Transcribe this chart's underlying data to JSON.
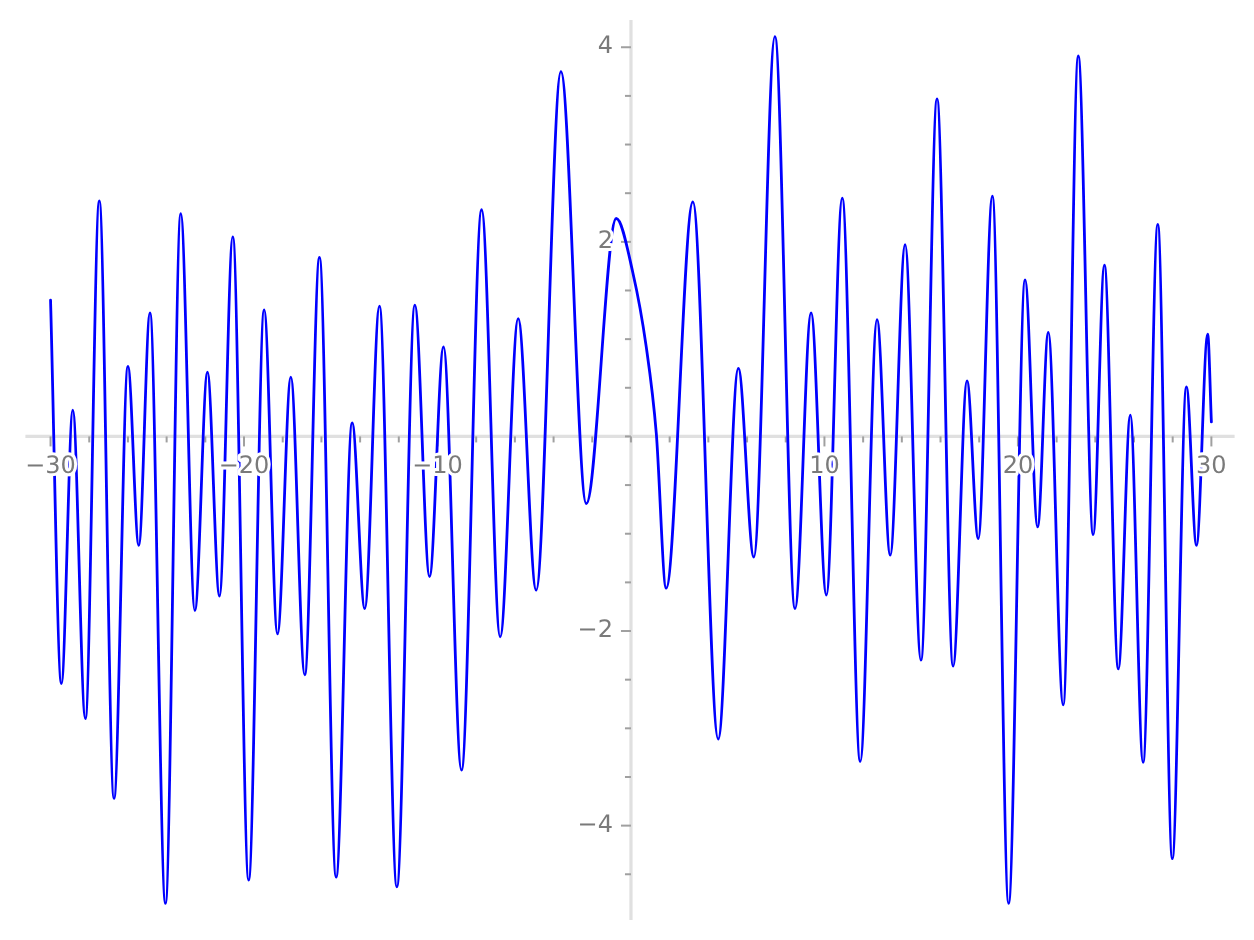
{
  "chart_data": {
    "type": "line",
    "color": "#0000ff",
    "x": [
      -30,
      -29.44,
      -28.85,
      -28.2,
      -27.48,
      -26.72,
      -26.0,
      -25.44,
      -24.86,
      -24.06,
      -23.27,
      -22.54,
      -21.89,
      -21.27,
      -20.58,
      -19.76,
      -18.96,
      -18.27,
      -17.58,
      -16.86,
      -16.1,
      -15.24,
      -14.41,
      -13.76,
      -13.0,
      -12.1,
      -11.17,
      -10.41,
      -9.69,
      -8.76,
      -7.72,
      -6.76,
      -5.83,
      -4.9,
      -3.62,
      -2.31,
      -0.76,
      0.1,
      0.79,
      1.31,
      1.82,
      3.2,
      4.51,
      5.55,
      6.35,
      7.44,
      8.48,
      9.31,
      10.1,
      10.92,
      11.85,
      12.72,
      13.4,
      14.17,
      14.99,
      15.82,
      16.65,
      17.37,
      17.95,
      18.68,
      19.52,
      20.37,
      21.02,
      21.57,
      22.34,
      23.12,
      23.89,
      24.47,
      25.19,
      25.81,
      26.47,
      27.23,
      27.98,
      28.71,
      29.23,
      29.81,
      30
    ],
    "values": [
      1.4,
      -2.54,
      0.27,
      -2.9,
      2.42,
      -3.72,
      0.72,
      -1.12,
      1.27,
      -4.8,
      2.29,
      -1.79,
      0.66,
      -1.64,
      2.05,
      -4.56,
      1.3,
      -2.03,
      0.61,
      -2.45,
      1.84,
      -4.53,
      0.14,
      -1.77,
      1.34,
      -4.63,
      1.35,
      -1.44,
      0.92,
      -3.43,
      2.33,
      -2.06,
      1.21,
      -1.58,
      3.75,
      -0.69,
      2.24,
      1.68,
      0.92,
      0.03,
      -1.56,
      2.41,
      -3.11,
      0.7,
      -1.24,
      4.11,
      -1.77,
      1.27,
      -1.63,
      2.45,
      -3.34,
      1.2,
      -1.22,
      1.97,
      -2.3,
      3.47,
      -2.36,
      0.57,
      -1.05,
      2.47,
      -4.8,
      1.61,
      -0.93,
      1.07,
      -2.76,
      3.91,
      -1.01,
      1.76,
      -2.39,
      0.22,
      -3.35,
      2.18,
      -4.34,
      0.51,
      -1.12,
      1.05,
      0.15
    ],
    "xlim": [
      -31.3,
      31.2
    ],
    "ylim": [
      -4.97,
      4.28
    ],
    "xticks": [
      {
        "value": -30,
        "label": "−30"
      },
      {
        "value": -28,
        "label": null
      },
      {
        "value": -26,
        "label": null
      },
      {
        "value": -24,
        "label": null
      },
      {
        "value": -22,
        "label": null
      },
      {
        "value": -20,
        "label": "−20"
      },
      {
        "value": -18,
        "label": null
      },
      {
        "value": -16,
        "label": null
      },
      {
        "value": -14,
        "label": null
      },
      {
        "value": -12,
        "label": null
      },
      {
        "value": -10,
        "label": "−10"
      },
      {
        "value": -8,
        "label": null
      },
      {
        "value": -6,
        "label": null
      },
      {
        "value": -4,
        "label": null
      },
      {
        "value": -2,
        "label": null
      },
      {
        "value": 0,
        "label": null
      },
      {
        "value": 2,
        "label": null
      },
      {
        "value": 4,
        "label": null
      },
      {
        "value": 6,
        "label": null
      },
      {
        "value": 8,
        "label": null
      },
      10,
      {
        "value": 12,
        "label": null
      },
      {
        "value": 14,
        "label": null
      },
      {
        "value": 16,
        "label": null
      },
      {
        "value": 18,
        "label": null
      },
      20,
      {
        "value": 22,
        "label": null
      },
      {
        "value": 24,
        "label": null
      },
      {
        "value": 26,
        "label": null
      },
      {
        "value": 28,
        "label": null
      },
      30
    ],
    "yticks": [
      {
        "value": -4.5,
        "label": null
      },
      {
        "value": -4,
        "label": "−4"
      },
      {
        "value": -3.5,
        "label": null
      },
      {
        "value": -3,
        "label": null
      },
      {
        "value": -2.5,
        "label": null
      },
      {
        "value": -2,
        "label": "−2"
      },
      {
        "value": -1.5,
        "label": null
      },
      {
        "value": -1,
        "label": null
      },
      {
        "value": -0.5,
        "label": null
      },
      {
        "value": 0,
        "label": null
      },
      {
        "value": 0.5,
        "label": null
      },
      {
        "value": 1,
        "label": null
      },
      {
        "value": 1.5,
        "label": null
      },
      2,
      {
        "value": 2.5,
        "label": null
      },
      {
        "value": 3,
        "label": null
      },
      {
        "value": 3.5,
        "label": null
      },
      4
    ]
  }
}
